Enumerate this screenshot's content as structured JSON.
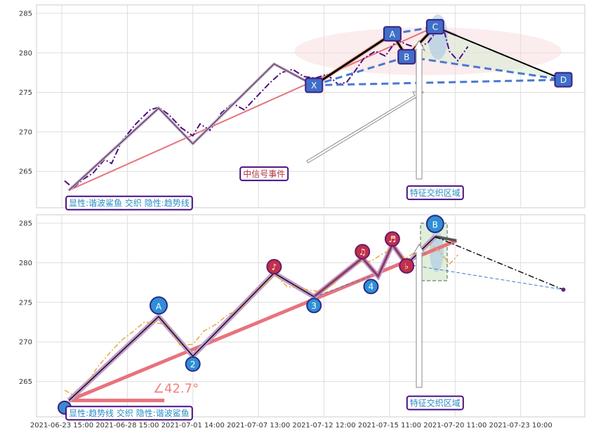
{
  "chart_data": [
    {
      "type": "line",
      "panel": "top",
      "ylim": [
        261,
        286
      ],
      "y_ticks": [
        "265",
        "270",
        "275",
        "280",
        "285"
      ],
      "grid": true,
      "price": [
        [
          0,
          263.8
        ],
        [
          0.6,
          262.9
        ],
        [
          1.3,
          264.0
        ],
        [
          2.0,
          264.8
        ],
        [
          2.8,
          266.5
        ],
        [
          3.3,
          266.0
        ],
        [
          4.0,
          268.8
        ],
        [
          5.0,
          271.0
        ],
        [
          6.0,
          272.8
        ],
        [
          6.6,
          273.1
        ],
        [
          7.3,
          272.2
        ],
        [
          8.2,
          270.5
        ],
        [
          9.0,
          269.5
        ],
        [
          9.5,
          271.0
        ],
        [
          10.2,
          270.2
        ],
        [
          11.0,
          272.4
        ],
        [
          11.8,
          273.6
        ],
        [
          12.6,
          272.8
        ],
        [
          13.5,
          274.5
        ],
        [
          14.4,
          276.2
        ],
        [
          15.2,
          277.5
        ],
        [
          16.0,
          277.9
        ],
        [
          16.8,
          277.0
        ],
        [
          17.6,
          276.8
        ],
        [
          18.4,
          277.3
        ],
        [
          19.2,
          276.0
        ],
        [
          19.8,
          276.3
        ],
        [
          20.3,
          277.5
        ],
        [
          21.0,
          279.3
        ],
        [
          21.8,
          280.2
        ],
        [
          22.5,
          279.6
        ],
        [
          23.3,
          281.6
        ],
        [
          24.1,
          281.0
        ],
        [
          24.8,
          280.6
        ],
        [
          25.5,
          281.3
        ],
        [
          26.0,
          282.5
        ],
        [
          26.6,
          283.0
        ],
        [
          27.0,
          280.2
        ],
        [
          27.6,
          279.0
        ],
        [
          28.3,
          280.8
        ]
      ],
      "trend_path": [
        [
          0.3,
          262.6
        ],
        [
          6.6,
          273.0
        ],
        [
          9.0,
          268.5
        ],
        [
          14.7,
          278.6
        ],
        [
          17.5,
          275.9
        ],
        [
          23.0,
          282.4
        ],
        [
          24.0,
          279.5
        ],
        [
          26.0,
          283.3
        ],
        [
          27.5,
          282.2
        ]
      ],
      "trendline": [
        [
          0.3,
          262.6
        ],
        [
          26.0,
          283.3
        ]
      ],
      "harmonic_points": [
        {
          "label": "X",
          "x": 17.5,
          "y": 275.9
        },
        {
          "label": "A",
          "x": 23.0,
          "y": 282.4
        },
        {
          "label": "B",
          "x": 24.0,
          "y": 279.5
        },
        {
          "label": "C",
          "x": 26.0,
          "y": 283.3
        },
        {
          "label": "D",
          "x": 35.0,
          "y": 276.6
        }
      ],
      "annotations": [
        {
          "text": "中信号事件",
          "x": 14.0,
          "y": 264.3
        },
        {
          "text": "特征交织区域",
          "x": 26.0,
          "y": 261.9
        },
        {
          "text": "显性:谐波鲨鱼 交织 隐性:趋势线",
          "x": 0.3,
          "y": 260.6
        }
      ]
    },
    {
      "type": "line",
      "panel": "bottom",
      "ylim": [
        261,
        286
      ],
      "y_ticks": [
        "265",
        "270",
        "275",
        "280",
        "285"
      ],
      "grid": true,
      "categories": [
        "2021-06-23 15:00",
        "2021-06-28 15:00",
        "2021-07-01 14:00",
        "2021-07-07 13:00",
        "2021-07-12 12:00",
        "2021-07-15 11:00",
        "2021-07-20 11:00",
        "2021-07-23 10:00"
      ],
      "price": [
        [
          0,
          263.9
        ],
        [
          0.7,
          263.2
        ],
        [
          1.5,
          264.6
        ],
        [
          2.3,
          266.8
        ],
        [
          3.2,
          268.7
        ],
        [
          4.0,
          270.2
        ],
        [
          4.8,
          271.3
        ],
        [
          5.6,
          272.5
        ],
        [
          6.4,
          272.4
        ],
        [
          7.2,
          272.2
        ],
        [
          8.1,
          269.6
        ],
        [
          9.0,
          269.7
        ],
        [
          9.8,
          271.4
        ],
        [
          10.6,
          272.2
        ],
        [
          11.5,
          273.5
        ],
        [
          12.3,
          274.1
        ],
        [
          13.2,
          275.9
        ],
        [
          14.0,
          277.1
        ],
        [
          14.8,
          278.5
        ],
        [
          15.6,
          277.0
        ],
        [
          16.5,
          276.8
        ],
        [
          17.3,
          276.5
        ],
        [
          18.1,
          276.3
        ],
        [
          19.0,
          277.5
        ],
        [
          19.8,
          279.0
        ],
        [
          20.6,
          280.0
        ],
        [
          21.5,
          280.2
        ],
        [
          22.3,
          281.1
        ],
        [
          23.1,
          281.9
        ],
        [
          23.9,
          280.5
        ],
        [
          24.8,
          281.6
        ],
        [
          25.6,
          282.4
        ],
        [
          26.3,
          281.5
        ],
        [
          27.0,
          279.8
        ],
        [
          27.6,
          281.0
        ]
      ],
      "trend_path": [
        [
          0.3,
          262.6
        ],
        [
          6.6,
          273.2
        ],
        [
          9.0,
          268.2
        ],
        [
          14.7,
          278.7
        ],
        [
          17.5,
          275.7
        ],
        [
          20.9,
          280.6
        ],
        [
          22.0,
          278.3
        ],
        [
          23.0,
          282.3
        ],
        [
          24.0,
          279.8
        ],
        [
          26.0,
          283.3
        ]
      ],
      "trendline": [
        [
          0.3,
          262.6
        ],
        [
          27.5,
          282.8
        ]
      ],
      "pattern_points": [
        {
          "label": "A",
          "x": 6.6,
          "y": 274.6
        },
        {
          "label": "2",
          "x": 9.0,
          "y": 267.2
        },
        {
          "label": "3",
          "x": 17.5,
          "y": 274.6
        },
        {
          "label": "4",
          "x": 21.5,
          "y": 277.0
        },
        {
          "label": "B",
          "x": 26.0,
          "y": 284.9
        },
        {
          "label": "♪",
          "x": 14.7,
          "y": 279.5
        },
        {
          "label": "♫",
          "x": 20.9,
          "y": 281.4
        },
        {
          "label": "♬",
          "x": 23.0,
          "y": 283.0
        },
        {
          "label": "♭",
          "x": 24.0,
          "y": 279.6
        }
      ],
      "projection": [
        [
          26.0,
          283.3
        ],
        [
          35.0,
          276.6
        ]
      ],
      "angle_label": "∠42.7°",
      "annotations": [
        {
          "text": "特征交织区域",
          "x": 26.0,
          "y": 261.9
        },
        {
          "text": "显性:趋势线 交织 隐性:谐波鲨鱼",
          "x": 0.3,
          "y": 260.6
        }
      ]
    }
  ]
}
